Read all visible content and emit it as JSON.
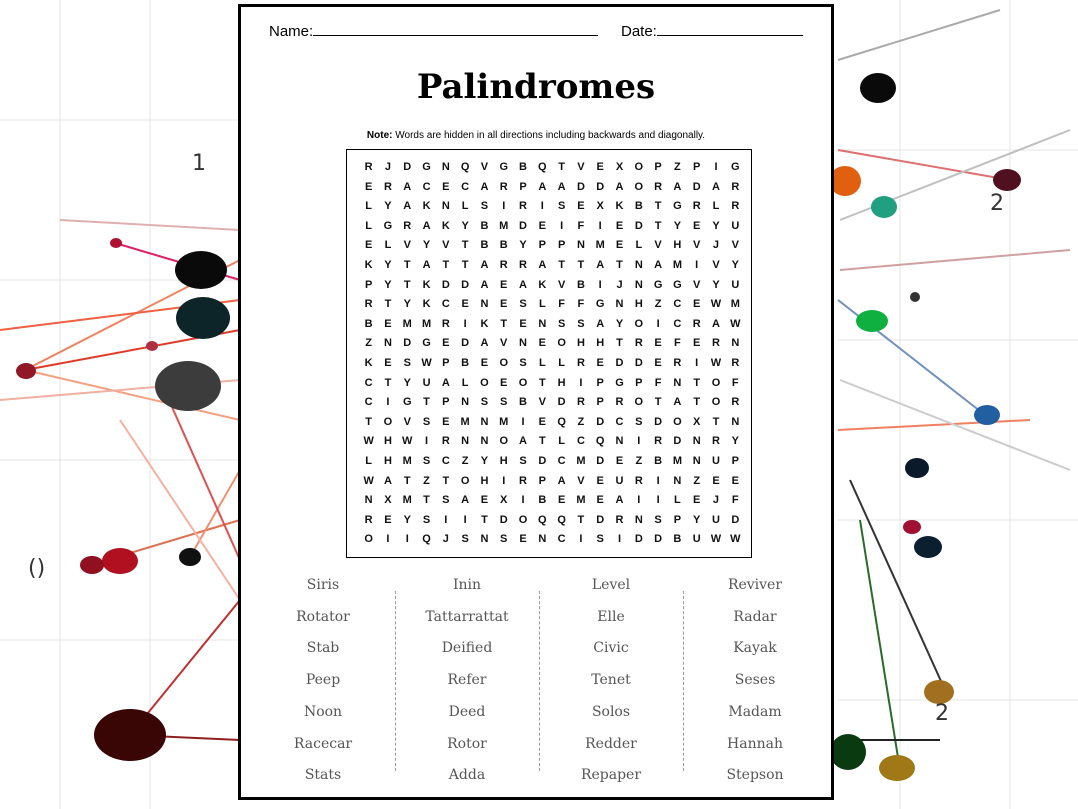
{
  "header": {
    "name_label": "Name:",
    "date_label": "Date:"
  },
  "title": "Palindromes",
  "note": {
    "bold": "Note:",
    "text": " Words are hidden in all directions including backwards and diagonally."
  },
  "grid": [
    "RJDGNQVGBQTVEXOPZPIG",
    "ERACECARPAADDAORADAR",
    "LYAKNLSIRISEXKBTGRLR",
    "LGRAKYBMDEIFIEDTYEYU",
    "ELVYVTBBYPPNMELVHVJV",
    "KYTATTARRATTATNAMIVY",
    "PYTKDDAEAKVBIJNGGVYU",
    "RTYKCENESLFFGNHZCEWM",
    "BEMMRIKTENSSAYOICRAW",
    "ZNDGEDAVNEOHHTREFERN",
    "KESWPBEOSLLREDDERIWR",
    "CTYUALOEOTHIPGPFNTOF",
    "CIGTPNSSBVDRPROTATOR",
    "TOVSEMNMIEQZDCSDOXTN",
    "WHWIRNNOATLCQNIRDNRY",
    "LHMSCZYHSDCMDEZBMNUP",
    "WATZTOHIRPAVEURINZEE",
    "NXMTSAEXIBEMEAIILEJF",
    "REYSIITDOQQTDRNSPYUD",
    "OIIQJSNSENCISIDDBUWW"
  ],
  "words": [
    [
      "Siris",
      "Rotator",
      "Stab",
      "Peep",
      "Noon",
      "Racecar",
      "Stats"
    ],
    [
      "Inin",
      "Tattarrattat",
      "Deified",
      "Refer",
      "Deed",
      "Rotor",
      "Adda"
    ],
    [
      "Level",
      "Elle",
      "Civic",
      "Tenet",
      "Solos",
      "Redder",
      "Repaper"
    ],
    [
      "Reviver",
      "Radar",
      "Kayak",
      "Seses",
      "Madam",
      "Hannah",
      "Stepson"
    ]
  ]
}
